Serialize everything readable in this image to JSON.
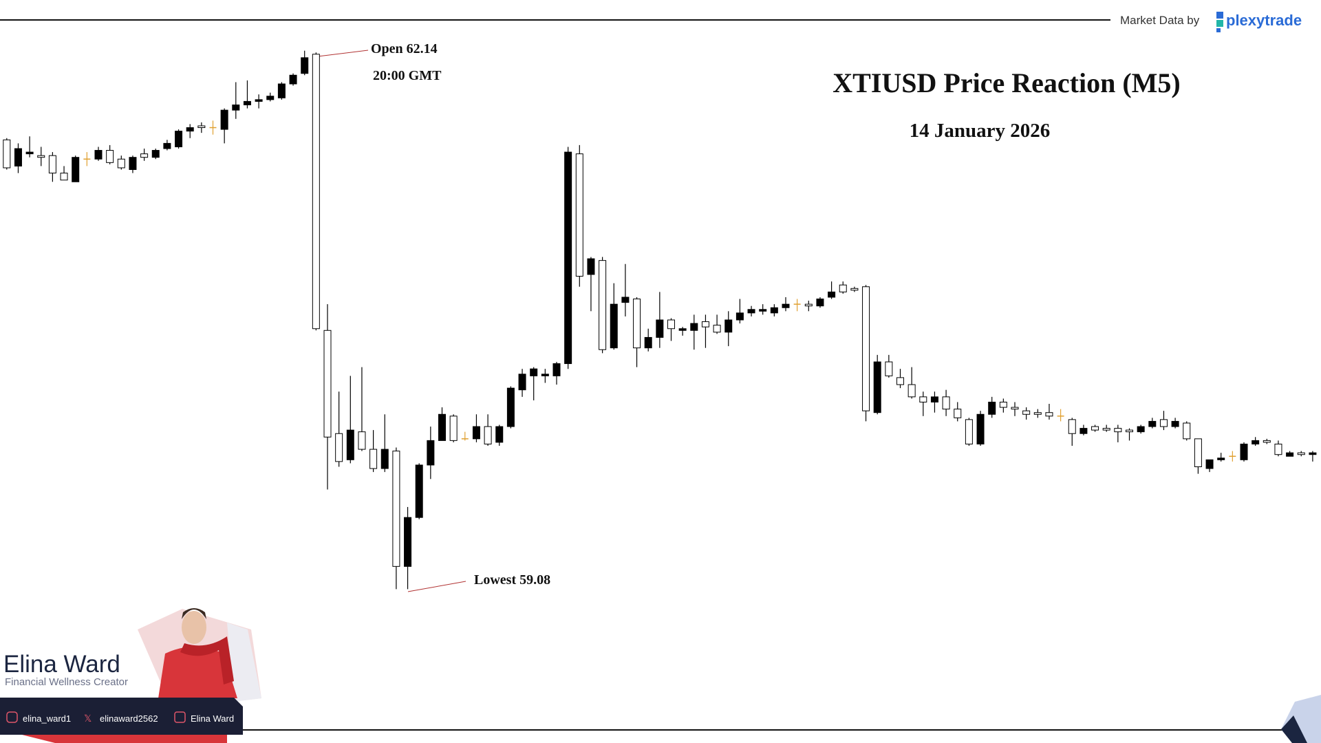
{
  "header": {
    "credit": "Market Data by",
    "brand": "plexytrade"
  },
  "chart_data": {
    "type": "candlestick",
    "title": "XTIUSD Price Reaction (M5)",
    "subtitle": "14 January 2026",
    "annotations": {
      "open": "Open 62.14",
      "time": "20:00 GMT",
      "low": "Lowest 59.08"
    },
    "ylim": [
      58.2,
      62.45
    ],
    "up_color": "#000000",
    "down_color": "#ffffff",
    "doji_color": "#e0a030",
    "stroke_color": "#000000",
    "candles": [
      [
        61.65,
        61.66,
        61.48,
        61.49
      ],
      [
        61.5,
        61.63,
        61.46,
        61.6
      ],
      [
        61.57,
        61.67,
        61.55,
        61.58
      ],
      [
        61.56,
        61.61,
        61.5,
        61.55
      ],
      [
        61.56,
        61.58,
        61.41,
        61.46
      ],
      [
        61.46,
        61.5,
        61.42,
        61.42
      ],
      [
        61.41,
        61.56,
        61.41,
        61.55
      ],
      [
        61.54,
        61.58,
        61.5,
        61.54
      ],
      [
        61.54,
        61.61,
        61.53,
        61.59
      ],
      [
        61.59,
        61.62,
        61.51,
        61.52
      ],
      [
        61.54,
        61.56,
        61.48,
        61.49
      ],
      [
        61.48,
        61.56,
        61.46,
        61.55
      ],
      [
        61.57,
        61.6,
        61.53,
        61.55
      ],
      [
        61.55,
        61.6,
        61.54,
        61.59
      ],
      [
        61.6,
        61.65,
        61.59,
        61.63
      ],
      [
        61.61,
        61.71,
        61.6,
        61.7
      ],
      [
        61.7,
        61.74,
        61.66,
        61.72
      ],
      [
        61.73,
        61.75,
        61.69,
        61.72
      ],
      [
        61.72,
        61.76,
        61.68,
        61.72
      ],
      [
        61.71,
        61.83,
        61.63,
        61.82
      ],
      [
        61.82,
        61.98,
        61.77,
        61.85
      ],
      [
        61.85,
        61.99,
        61.83,
        61.87
      ],
      [
        61.87,
        61.91,
        61.83,
        61.88
      ],
      [
        61.88,
        61.92,
        61.87,
        61.9
      ],
      [
        61.89,
        61.98,
        61.88,
        61.97
      ],
      [
        61.97,
        62.03,
        61.96,
        62.02
      ],
      [
        62.03,
        62.16,
        62.02,
        62.12
      ],
      [
        62.14,
        62.15,
        60.56,
        60.57
      ],
      [
        60.56,
        60.71,
        59.65,
        59.95
      ],
      [
        59.97,
        60.21,
        59.78,
        59.81
      ],
      [
        59.82,
        60.3,
        59.8,
        59.99
      ],
      [
        59.98,
        60.35,
        59.87,
        59.88
      ],
      [
        59.88,
        59.99,
        59.75,
        59.77
      ],
      [
        59.77,
        60.08,
        59.75,
        59.88
      ],
      [
        59.87,
        59.89,
        59.08,
        59.21
      ],
      [
        59.21,
        59.55,
        59.08,
        59.49
      ],
      [
        59.49,
        59.8,
        59.48,
        59.79
      ],
      [
        59.79,
        60.01,
        59.71,
        59.93
      ],
      [
        59.93,
        60.12,
        59.93,
        60.08
      ],
      [
        60.07,
        60.08,
        59.92,
        59.93
      ],
      [
        59.94,
        59.98,
        59.93,
        59.94
      ],
      [
        59.94,
        60.08,
        59.92,
        60.01
      ],
      [
        60.01,
        60.08,
        59.9,
        59.91
      ],
      [
        59.92,
        60.02,
        59.9,
        60.01
      ],
      [
        60.01,
        60.24,
        60.0,
        60.23
      ],
      [
        60.22,
        60.34,
        60.18,
        60.31
      ],
      [
        60.3,
        60.35,
        60.16,
        60.34
      ],
      [
        60.3,
        60.34,
        60.26,
        60.31
      ],
      [
        60.3,
        60.38,
        60.25,
        60.37
      ],
      [
        60.37,
        61.61,
        60.34,
        61.58
      ],
      [
        61.57,
        61.62,
        60.81,
        60.87
      ],
      [
        60.88,
        60.98,
        60.67,
        60.97
      ],
      [
        60.96,
        60.98,
        60.43,
        60.45
      ],
      [
        60.46,
        60.83,
        60.45,
        60.71
      ],
      [
        60.72,
        60.94,
        60.64,
        60.75
      ],
      [
        60.74,
        60.75,
        60.35,
        60.46
      ],
      [
        60.46,
        60.57,
        60.44,
        60.52
      ],
      [
        60.52,
        60.78,
        60.46,
        60.62
      ],
      [
        60.62,
        60.63,
        60.5,
        60.57
      ],
      [
        60.56,
        60.58,
        60.53,
        60.57
      ],
      [
        60.56,
        60.65,
        60.45,
        60.6
      ],
      [
        60.61,
        60.65,
        60.46,
        60.58
      ],
      [
        60.59,
        60.65,
        60.54,
        60.55
      ],
      [
        60.55,
        60.67,
        60.47,
        60.62
      ],
      [
        60.62,
        60.74,
        60.6,
        60.66
      ],
      [
        60.66,
        60.7,
        60.64,
        60.68
      ],
      [
        60.67,
        60.71,
        60.65,
        60.68
      ],
      [
        60.66,
        60.71,
        60.64,
        60.69
      ],
      [
        60.69,
        60.75,
        60.67,
        60.71
      ],
      [
        60.71,
        60.74,
        60.67,
        60.71
      ],
      [
        60.71,
        60.73,
        60.67,
        60.7
      ],
      [
        60.7,
        60.75,
        60.69,
        60.74
      ],
      [
        60.75,
        60.84,
        60.74,
        60.78
      ],
      [
        60.82,
        60.84,
        60.77,
        60.78
      ],
      [
        60.8,
        60.81,
        60.78,
        60.79
      ],
      [
        60.81,
        60.82,
        60.04,
        60.1
      ],
      [
        60.09,
        60.42,
        60.08,
        60.38
      ],
      [
        60.38,
        60.42,
        60.29,
        60.3
      ],
      [
        60.29,
        60.34,
        60.23,
        60.25
      ],
      [
        60.25,
        60.35,
        60.17,
        60.18
      ],
      [
        60.18,
        60.21,
        60.07,
        60.15
      ],
      [
        60.15,
        60.21,
        60.09,
        60.18
      ],
      [
        60.18,
        60.22,
        60.07,
        60.11
      ],
      [
        60.11,
        60.15,
        60.04,
        60.06
      ],
      [
        60.05,
        60.06,
        59.9,
        59.91
      ],
      [
        59.91,
        60.1,
        59.9,
        60.08
      ],
      [
        60.08,
        60.18,
        60.06,
        60.15
      ],
      [
        60.15,
        60.17,
        60.09,
        60.12
      ],
      [
        60.12,
        60.15,
        60.07,
        60.11
      ],
      [
        60.1,
        60.12,
        60.05,
        60.08
      ],
      [
        60.09,
        60.11,
        60.06,
        60.08
      ],
      [
        60.09,
        60.14,
        60.05,
        60.07
      ],
      [
        60.07,
        60.11,
        60.04,
        60.07
      ],
      [
        60.05,
        60.06,
        59.9,
        59.97
      ],
      [
        59.97,
        60.02,
        59.96,
        60.0
      ],
      [
        60.01,
        60.02,
        59.98,
        59.99
      ],
      [
        60.0,
        60.02,
        59.98,
        59.99
      ],
      [
        60.0,
        60.02,
        59.92,
        59.98
      ],
      [
        59.99,
        60.0,
        59.93,
        59.98
      ],
      [
        59.98,
        60.02,
        59.97,
        60.01
      ],
      [
        60.01,
        60.06,
        60.0,
        60.04
      ],
      [
        60.05,
        60.1,
        59.99,
        60.01
      ],
      [
        60.01,
        60.06,
        60.0,
        60.04
      ],
      [
        60.03,
        60.04,
        59.93,
        59.94
      ],
      [
        59.94,
        59.94,
        59.74,
        59.78
      ],
      [
        59.77,
        59.82,
        59.75,
        59.82
      ],
      [
        59.82,
        59.86,
        59.81,
        59.83
      ],
      [
        59.84,
        59.87,
        59.81,
        59.84
      ],
      [
        59.82,
        59.92,
        59.81,
        59.91
      ],
      [
        59.91,
        59.95,
        59.9,
        59.93
      ],
      [
        59.93,
        59.94,
        59.91,
        59.92
      ],
      [
        59.91,
        59.93,
        59.84,
        59.85
      ],
      [
        59.84,
        59.87,
        59.84,
        59.86
      ],
      [
        59.86,
        59.87,
        59.84,
        59.85
      ],
      [
        59.85,
        59.87,
        59.81,
        59.86
      ]
    ]
  },
  "creator": {
    "name": "Elina Ward",
    "tagline": "Financial Wellness Creator",
    "socials": [
      "elina_ward1",
      "elinaward2562",
      "Elina Ward"
    ]
  }
}
